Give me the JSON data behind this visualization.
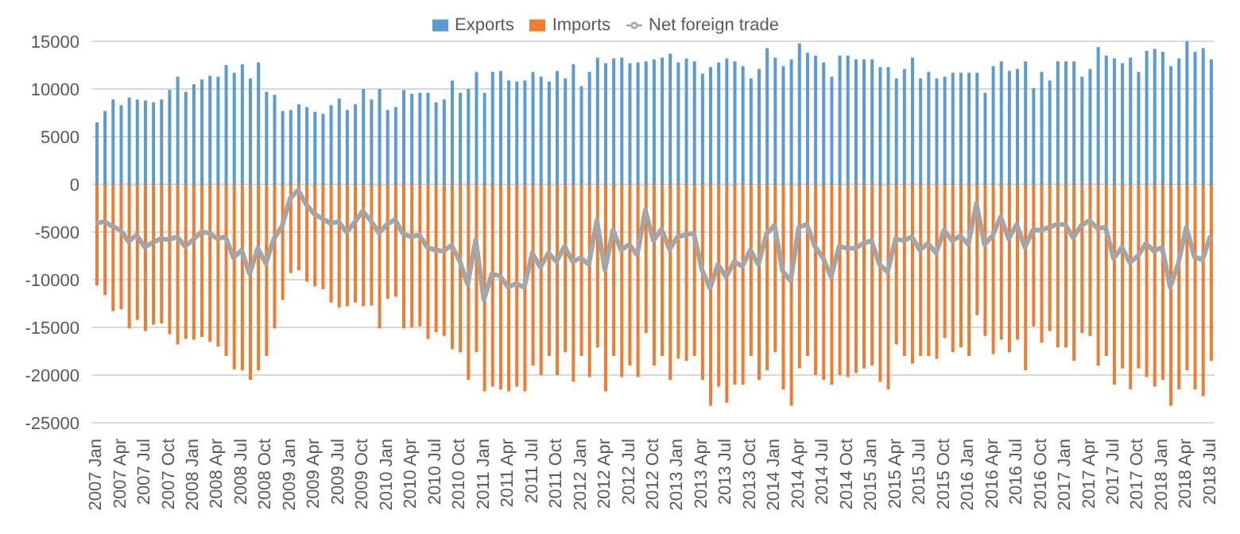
{
  "chart_data": {
    "type": "bar",
    "stacked": true,
    "ylim": [
      -25000,
      15000
    ],
    "yticks": [
      -25000,
      -20000,
      -15000,
      -10000,
      -5000,
      0,
      5000,
      10000,
      15000
    ],
    "grid": "y",
    "legend": "top",
    "categories": [
      "2007 Jan",
      null,
      null,
      "2007 Apr",
      null,
      null,
      "2007 Jul",
      null,
      null,
      "2007 Oct",
      null,
      null,
      "2008 Jan",
      null,
      null,
      "2008 Apr",
      null,
      null,
      "2008 Jul",
      null,
      null,
      "2008 Oct",
      null,
      null,
      "2009 Jan",
      null,
      null,
      "2009 Apr",
      null,
      null,
      "2009 Jul",
      null,
      null,
      "2009 Oct",
      null,
      null,
      "2010 Jan",
      null,
      null,
      "2010 Apr",
      null,
      null,
      "2010 Jul",
      null,
      null,
      "2010 Oct",
      null,
      null,
      "2011 Jan",
      null,
      null,
      "2011 Apr",
      null,
      null,
      "2011 Jul",
      null,
      null,
      "2011 Oct",
      null,
      null,
      "2012 Jan",
      null,
      null,
      "2012 Apr",
      null,
      null,
      "2012 Jul",
      null,
      null,
      "2012 Oct",
      null,
      null,
      "2013 Jan",
      null,
      null,
      "2013 Apr",
      null,
      null,
      "2013 Jul",
      null,
      null,
      "2013 Oct",
      null,
      null,
      "2014 Jan",
      null,
      null,
      "2014 Apr",
      null,
      null,
      "2014 Jul",
      null,
      null,
      "2014 Oct",
      null,
      null,
      "2015 Jan",
      null,
      null,
      "2015 Apr",
      null,
      null,
      "2015 Jul",
      null,
      null,
      "2015 Oct",
      null,
      null,
      "2016 Jan",
      null,
      null,
      "2016 Apr",
      null,
      null,
      "2016 Jul",
      null,
      null,
      "2016 Oct",
      null,
      null,
      "2017 Jan",
      null,
      null,
      "2017 Apr",
      null,
      null,
      "2017 Jul",
      null,
      null,
      "2017 Oct",
      null,
      null,
      "2018 Jan",
      null,
      null,
      "2018 Apr",
      null,
      null,
      "2018 Jul"
    ],
    "series": [
      {
        "name": "Exports",
        "color": "#5b9bd5",
        "values": [
          6500,
          7700,
          8900,
          8300,
          9100,
          8900,
          8800,
          8600,
          8900,
          9900,
          11300,
          9700,
          10500,
          11000,
          11400,
          11300,
          12500,
          11700,
          12600,
          11100,
          12800,
          9700,
          9400,
          7700,
          7800,
          8400,
          8100,
          7600,
          7400,
          8300,
          9000,
          7800,
          8400,
          10000,
          8900,
          10000,
          7800,
          8100,
          9900,
          9500,
          9600,
          9600,
          8600,
          8900,
          10900,
          9600,
          10000,
          11800,
          9600,
          11800,
          11900,
          10900,
          10800,
          10900,
          11800,
          11300,
          10800,
          11900,
          11100,
          12600,
          10300,
          11800,
          13300,
          12700,
          13200,
          13300,
          12700,
          12800,
          12900,
          13100,
          13300,
          13700,
          12800,
          13200,
          12900,
          11600,
          12300,
          12800,
          13200,
          12900,
          12400,
          11100,
          12100,
          14300,
          13300,
          12400,
          13100,
          14800,
          13800,
          13500,
          12800,
          11300,
          13500,
          13500,
          13100,
          13100,
          13100,
          12300,
          12300,
          11100,
          12100,
          13300,
          11100,
          11800,
          11100,
          11300,
          11700,
          11700,
          11700,
          11700,
          9600,
          12400,
          12900,
          11900,
          12100,
          12900,
          10100,
          11800,
          10900,
          12900,
          12900,
          12900,
          11300,
          12100,
          14400,
          13500,
          13200,
          12700,
          13300,
          11800,
          14000,
          14200,
          13900,
          12400,
          13200,
          15000,
          13900,
          14300,
          13100
        ]
      },
      {
        "name": "Imports",
        "color": "#ed7d31",
        "values": [
          -10600,
          -11600,
          -13300,
          -13100,
          -15100,
          -14200,
          -15400,
          -14700,
          -14600,
          -15700,
          -16800,
          -16200,
          -16300,
          -16000,
          -16500,
          -17000,
          -18000,
          -19400,
          -19500,
          -20500,
          -19500,
          -18000,
          -15100,
          -12100,
          -9300,
          -9000,
          -10200,
          -10700,
          -11000,
          -12400,
          -12900,
          -12800,
          -12400,
          -12800,
          -12700,
          -15100,
          -12000,
          -11800,
          -15100,
          -15000,
          -14900,
          -16200,
          -15500,
          -15900,
          -17300,
          -17600,
          -20500,
          -17600,
          -21700,
          -21200,
          -21500,
          -21700,
          -21200,
          -21700,
          -19000,
          -20000,
          -18000,
          -20000,
          -17600,
          -20700,
          -18000,
          -20200,
          -17100,
          -21700,
          -18000,
          -20200,
          -19000,
          -20200,
          -15600,
          -19000,
          -18000,
          -20500,
          -18300,
          -18500,
          -18000,
          -20500,
          -23200,
          -21200,
          -22900,
          -21000,
          -21000,
          -18000,
          -20500,
          -19500,
          -17600,
          -21500,
          -23200,
          -19300,
          -18000,
          -20000,
          -20500,
          -21000,
          -20000,
          -20200,
          -19800,
          -19300,
          -19000,
          -20700,
          -21500,
          -16800,
          -18000,
          -18800,
          -18000,
          -18000,
          -18300,
          -16100,
          -17600,
          -17100,
          -18000,
          -13700,
          -15900,
          -17800,
          -16300,
          -17600,
          -16300,
          -19500,
          -14900,
          -16600,
          -15400,
          -17100,
          -17100,
          -18500,
          -15600,
          -15900,
          -19000,
          -18000,
          -21000,
          -19300,
          -21500,
          -19300,
          -20200,
          -21200,
          -20500,
          -23200,
          -21500,
          -19500,
          -21500,
          -22200,
          -18500
        ]
      },
      {
        "name": "Net foreign trade",
        "type": "line",
        "color": "#a5a5a5",
        "values": [
          -4100,
          -3900,
          -4400,
          -4800,
          -6000,
          -5300,
          -6600,
          -6100,
          -5700,
          -5800,
          -5500,
          -6500,
          -5800,
          -5000,
          -5100,
          -5700,
          -5500,
          -7700,
          -6900,
          -9400,
          -6700,
          -8300,
          -5700,
          -4400,
          -1500,
          -600,
          -2100,
          -3100,
          -3600,
          -4100,
          -3900,
          -5000,
          -4000,
          -2800,
          -3800,
          -5100,
          -4200,
          -3700,
          -5200,
          -5500,
          -5300,
          -6600,
          -6900,
          -7000,
          -6400,
          -8000,
          -10500,
          -5800,
          -12100,
          -9400,
          -9600,
          -10800,
          -10400,
          -10800,
          -7200,
          -8700,
          -7200,
          -8100,
          -6500,
          -8100,
          -7700,
          -8400,
          -3800,
          -9000,
          -4800,
          -6900,
          -6300,
          -7400,
          -2700,
          -5900,
          -4700,
          -6800,
          -5500,
          -5300,
          -5100,
          -8900,
          -10900,
          -8400,
          -9700,
          -8100,
          -8600,
          -6900,
          -8400,
          -5200,
          -4300,
          -9100,
          -10100,
          -4500,
          -4200,
          -6500,
          -7700,
          -9700,
          -6500,
          -6700,
          -6700,
          -6200,
          -5900,
          -8400,
          -9200,
          -5700,
          -5900,
          -5500,
          -6900,
          -6200,
          -7200,
          -4800,
          -5900,
          -5400,
          -6300,
          -2000,
          -6300,
          -5400,
          -3400,
          -5700,
          -4200,
          -6600,
          -4800,
          -4800,
          -4500,
          -4200,
          -4200,
          -5600,
          -4300,
          -3800,
          -4600,
          -4500,
          -7800,
          -6600,
          -8200,
          -7500,
          -6200,
          -7000,
          -6600,
          -10800,
          -8300,
          -4500,
          -7600,
          -7900,
          -5400
        ]
      }
    ]
  }
}
